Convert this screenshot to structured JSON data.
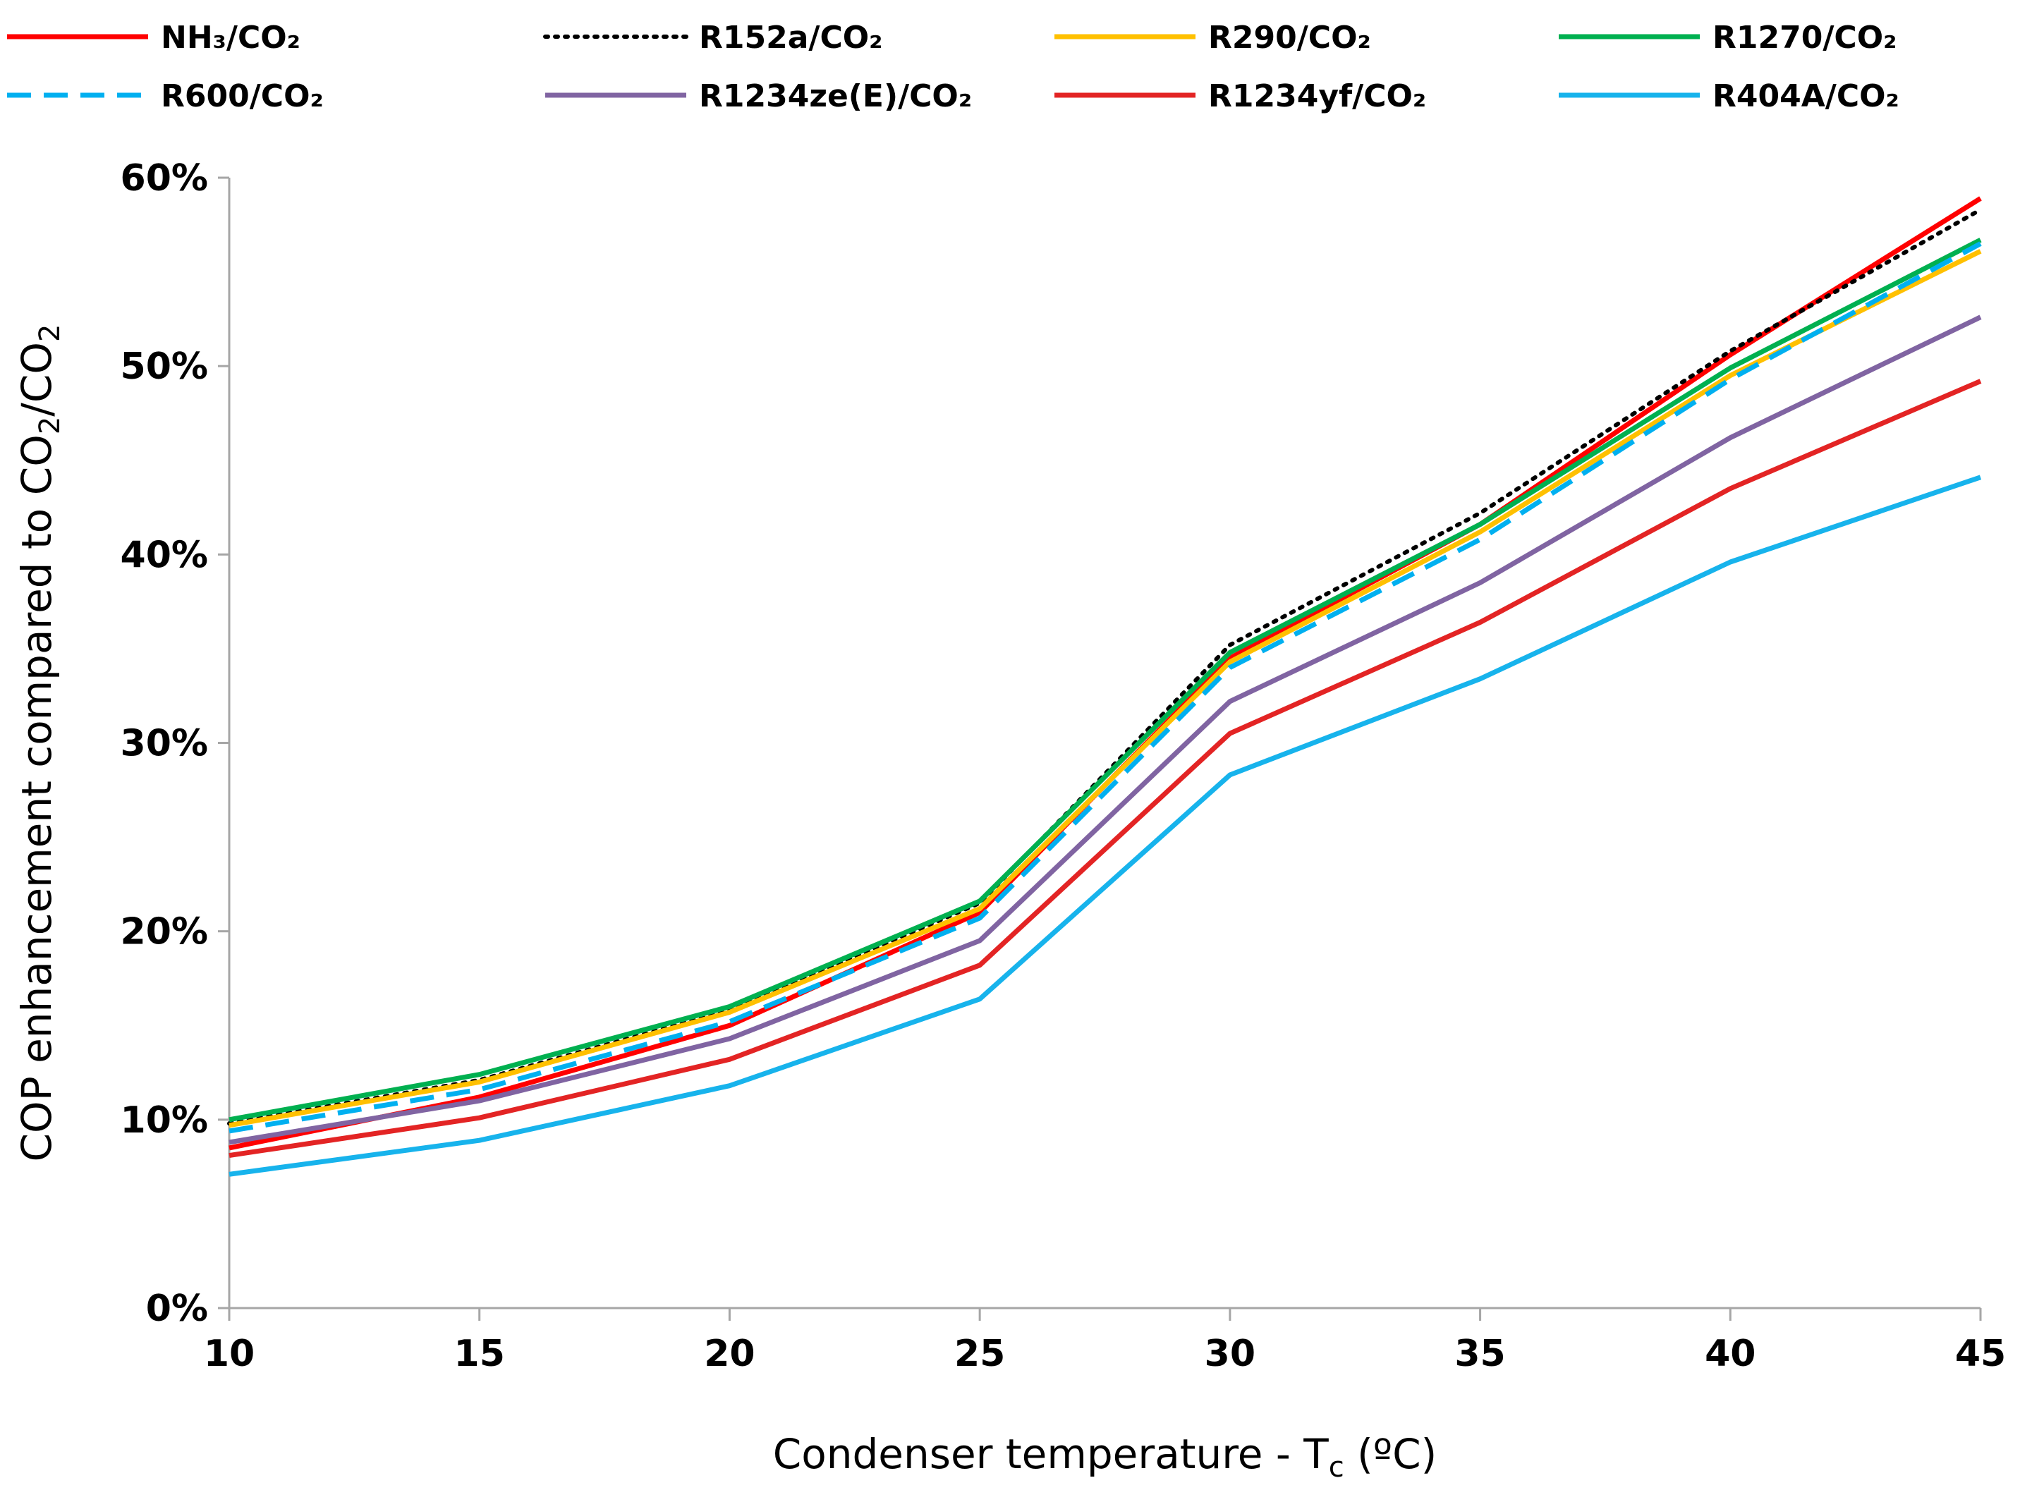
{
  "chart_data": {
    "type": "line",
    "title": "",
    "xlabel": "Condenser temperature - T",
    "xlabel_sub": "c",
    "xlabel_tail": " (ºC)",
    "ylabel_parts": [
      "COP enhancement compared to CO",
      "2",
      "/CO",
      "2"
    ],
    "x": [
      10,
      15,
      20,
      25,
      30,
      35,
      40,
      45
    ],
    "xlim": [
      10,
      45
    ],
    "ylim": [
      0,
      0.6
    ],
    "y_ticks": [
      0,
      0.1,
      0.2,
      0.3,
      0.4,
      0.5,
      0.6
    ],
    "y_tick_labels": [
      "0%",
      "10%",
      "20%",
      "30%",
      "40%",
      "50%",
      "60%"
    ],
    "x_tick_labels": [
      "10",
      "15",
      "20",
      "25",
      "30",
      "35",
      "40",
      "45"
    ],
    "grid": false,
    "legend_placement": "top",
    "series": [
      {
        "name": "NH₃/CO₂",
        "color": "#ff0000",
        "dash": "solid",
        "values": [
          0.085,
          0.112,
          0.15,
          0.21,
          0.345,
          0.416,
          0.506,
          0.589
        ]
      },
      {
        "name": "R152a/CO₂",
        "color": "#000000",
        "dash": "dotted",
        "values": [
          0.098,
          0.121,
          0.158,
          0.215,
          0.352,
          0.422,
          0.508,
          0.583
        ]
      },
      {
        "name": "R290/CO₂",
        "color": "#ffc000",
        "dash": "solid",
        "values": [
          0.097,
          0.12,
          0.157,
          0.212,
          0.343,
          0.412,
          0.495,
          0.561
        ]
      },
      {
        "name": "R1270/CO₂",
        "color": "#00b050",
        "dash": "solid",
        "values": [
          0.1,
          0.124,
          0.16,
          0.216,
          0.348,
          0.416,
          0.499,
          0.567
        ]
      },
      {
        "name": "R600/CO₂",
        "color": "#00b0f0",
        "dash": "dashed",
        "values": [
          0.094,
          0.116,
          0.152,
          0.207,
          0.34,
          0.408,
          0.493,
          0.565
        ]
      },
      {
        "name": "R1234ze(E)/CO₂",
        "color": "#8064a2",
        "dash": "solid",
        "values": [
          0.088,
          0.11,
          0.143,
          0.195,
          0.322,
          0.385,
          0.462,
          0.526
        ]
      },
      {
        "name": "R1234yf/CO₂",
        "color": "#e32424",
        "dash": "solid",
        "values": [
          0.081,
          0.101,
          0.132,
          0.182,
          0.305,
          0.364,
          0.435,
          0.492
        ]
      },
      {
        "name": "R404A/CO₂",
        "color": "#17b3ec",
        "dash": "solid",
        "values": [
          0.071,
          0.089,
          0.118,
          0.164,
          0.283,
          0.334,
          0.396,
          0.441
        ]
      }
    ]
  }
}
